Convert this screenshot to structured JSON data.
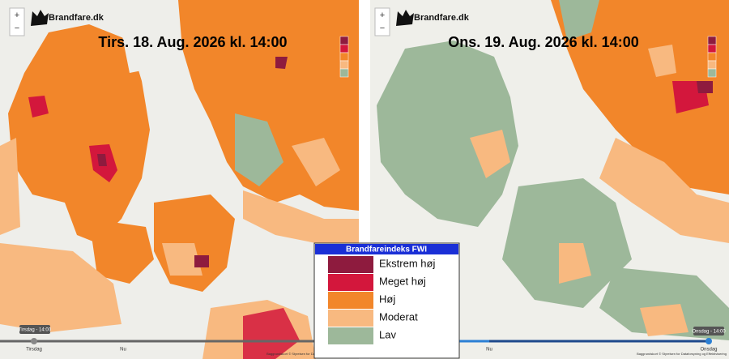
{
  "panels": [
    {
      "logo": "Brandfare.dk",
      "zoom_in": "+",
      "zoom_out": "−",
      "title": "Tirs. 18. Aug. 2026 kl. 14:00",
      "time_label": "Tirsdag - 14:00",
      "timeline": [
        "Tirsdag",
        "Nu"
      ],
      "attribution": "Baggrundskort © Styrelsen for Dataforsyning og Effektivisering"
    },
    {
      "logo": "Brandfare.dk",
      "zoom_in": "+",
      "zoom_out": "−",
      "title": "Ons. 19. Aug. 2026 kl. 14:00",
      "time_label": "Onsdag - 14:00",
      "timeline": [
        "Nu",
        "Onsdag"
      ],
      "attribution": "Baggrundskort © Styrelsen for Dataforsyning og Effektivisering"
    }
  ],
  "legend": {
    "title": "Brandfareindeks FWI",
    "items": [
      {
        "label": "Ekstrem høj",
        "color": "#8e1b3e"
      },
      {
        "label": "Meget høj",
        "color": "#d3173c"
      },
      {
        "label": "Høj",
        "color": "#f2862a"
      },
      {
        "label": "Moderat",
        "color": "#f8b980"
      },
      {
        "label": "Lav",
        "color": "#9db89a"
      }
    ]
  }
}
